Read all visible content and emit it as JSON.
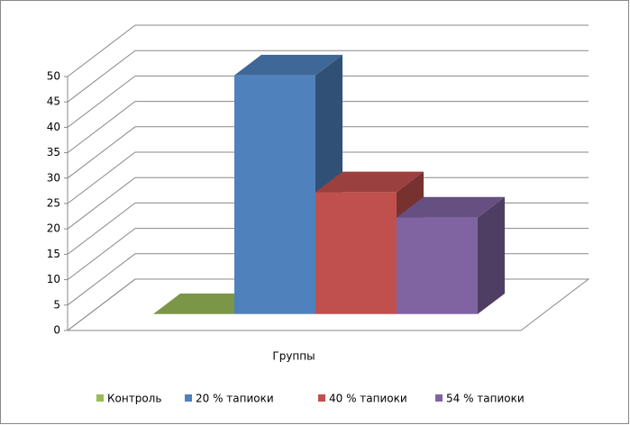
{
  "chart_data": {
    "type": "bar3d",
    "categories": [
      "Группы"
    ],
    "series": [
      {
        "name": "Контроль",
        "color": "#9bbb59",
        "values": [
          0
        ]
      },
      {
        "name": "20 % тапиоки",
        "color": "#4f81bd",
        "values": [
          47
        ]
      },
      {
        "name": "40 % тапиоки",
        "color": "#c0504d",
        "values": [
          24
        ]
      },
      {
        "name": "54 % тапиоки",
        "color": "#8064a2",
        "values": [
          19
        ]
      }
    ],
    "ylim": [
      0,
      50
    ],
    "yticks": [
      0,
      5,
      10,
      15,
      20,
      25,
      30,
      35,
      40,
      45,
      50
    ],
    "grid": true,
    "legend": "bottom"
  }
}
